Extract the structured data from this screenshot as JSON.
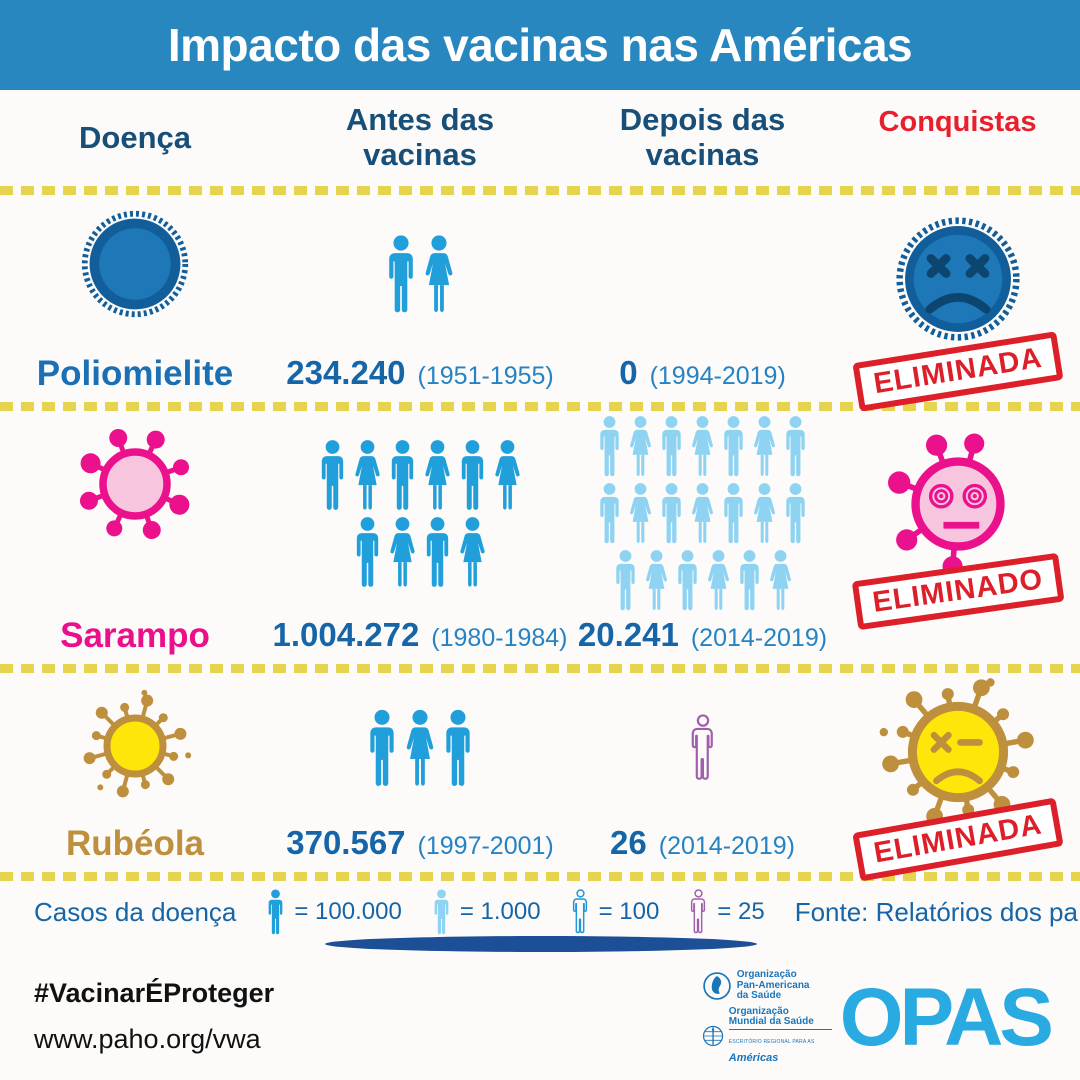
{
  "header": {
    "title": "Impacto das vacinas nas Américas"
  },
  "columns": {
    "disease": "Doença",
    "before": "Antes das vacinas",
    "after": "Depois das vacinas",
    "achievements": "Conquistas"
  },
  "rows": [
    {
      "disease": "Poliomielite",
      "before": {
        "value": "234.240",
        "period": "(1951-1955)",
        "people": [
          [
            "m",
            "f"
          ]
        ]
      },
      "after": {
        "value": "0",
        "period": "(1994-2019)",
        "people": []
      },
      "achievement": {
        "stamp": "ELIMINADA",
        "face": "sad-blue-virus"
      }
    },
    {
      "disease": "Sarampo",
      "before": {
        "value": "1.004.272",
        "period": "(1980-1984)",
        "people": [
          [
            "m",
            "f",
            "m",
            "f",
            "m",
            "f"
          ],
          [
            "m",
            "f",
            "m",
            "f"
          ]
        ]
      },
      "after": {
        "value": "20.241",
        "period": "(2014-2019)",
        "people": [
          [
            "m",
            "f",
            "m",
            "f",
            "m",
            "f",
            "m"
          ],
          [
            "m",
            "f",
            "m",
            "f",
            "m",
            "f",
            "m"
          ],
          [
            "m",
            "f",
            "m",
            "f",
            "m",
            "f"
          ]
        ]
      },
      "achievement": {
        "stamp": "ELIMINADO",
        "face": "dizzy-pink-virus"
      }
    },
    {
      "disease": "Rubéola",
      "before": {
        "value": "370.567",
        "period": "(1997-2001)",
        "people": [
          [
            "m",
            "f",
            "m"
          ]
        ]
      },
      "after": {
        "value": "26",
        "period": "(2014-2019)",
        "people": [
          [
            "om"
          ]
        ]
      },
      "achievement": {
        "stamp": "ELIMINADA",
        "face": "sad-yellow-virus"
      }
    }
  ],
  "legend": {
    "label": "Casos da doença",
    "items": [
      {
        "icon": "person-filled-blue",
        "value": "= 100.000"
      },
      {
        "icon": "person-filled-lightblue",
        "value": "= 1.000"
      },
      {
        "icon": "person-outline-blue",
        "value": "= 100"
      },
      {
        "icon": "person-outline-purple",
        "value": "= 25"
      }
    ],
    "source": "Fonte: Relatórios dos países para a OPAS"
  },
  "footer": {
    "hashtag": "#VacinarÉProteger",
    "url": "www.paho.org/vwa",
    "logo": {
      "org1_l1": "Organização",
      "org1_l2": "Pan-Americana",
      "org1_l3": "da Saúde",
      "org2_l1": "Organização",
      "org2_l2": "Mundial da Saúde",
      "office": "ESCRITÓRIO REGIONAL PARA AS",
      "region": "Américas",
      "acronym": "OPAS"
    }
  },
  "colors": {
    "header_bg": "#2787BE",
    "heading_navy": "#174F79",
    "achievements_red": "#E8202E",
    "stamp_red": "#DD1F2A",
    "value_blue": "#1565A8",
    "period_blue": "#2583C4",
    "person_blue": "#219FDB",
    "person_lightblue": "#8FD3F3",
    "person_outline_blue": "#2196D8",
    "person_outline_purple": "#A05FAD",
    "polio_dark": "#115E9B",
    "polio_mid": "#1E77B6",
    "polio_features": "#0C4570",
    "measles_pink": "#EB108C",
    "measles_lightpink": "#F7C6DE",
    "rubella_gold": "#BE8F3C",
    "rubella_yellow": "#FFE60A",
    "dotted_yellow": "#E7D44E",
    "ground_navy": "#1C4F96",
    "opas_blue": "#29ABE2",
    "logo_blue": "#1B75BB"
  },
  "chart_data": {
    "type": "table",
    "title": "Impacto das vacinas nas Américas",
    "columns": [
      "Doença",
      "Antes das vacinas",
      "Depois das vacinas",
      "Conquistas"
    ],
    "rows": [
      {
        "doenca": "Poliomielite",
        "antes_casos": 234240,
        "antes_periodo": "1951-1955",
        "depois_casos": 0,
        "depois_periodo": "1994-2019",
        "conquista": "ELIMINADA"
      },
      {
        "doenca": "Sarampo",
        "antes_casos": 1004272,
        "antes_periodo": "1980-1984",
        "depois_casos": 20241,
        "depois_periodo": "2014-2019",
        "conquista": "ELIMINADO"
      },
      {
        "doenca": "Rubéola",
        "antes_casos": 370567,
        "antes_periodo": "1997-2001",
        "depois_casos": 26,
        "depois_periodo": "2014-2019",
        "conquista": "ELIMINADA"
      }
    ],
    "pictogram_scale": {
      "person_dark_blue": 100000,
      "person_light_blue": 1000,
      "person_outline_blue": 100,
      "person_outline_purple": 25
    },
    "source": "Fonte: Relatórios dos países para a OPAS"
  }
}
